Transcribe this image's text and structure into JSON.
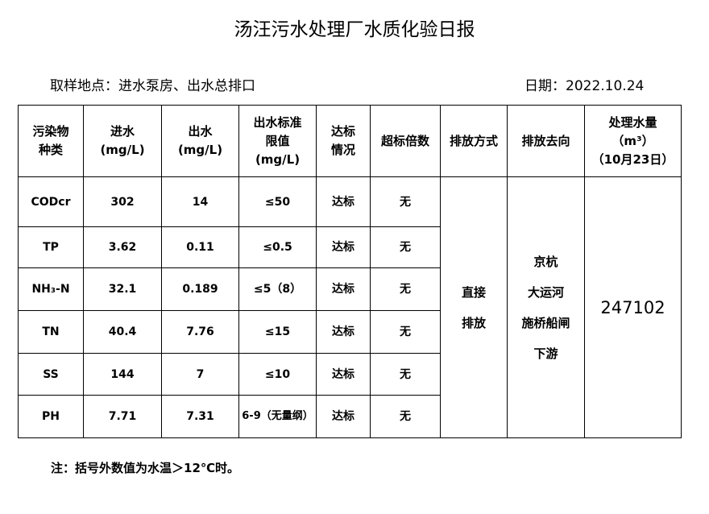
{
  "title": "汤汪污水处理厂水质化验日报",
  "sampling_location": "取样地点：进水泵房、出水总排口",
  "date": "日期：2022.10.24",
  "table": {
    "headers": [
      [
        "污染物",
        "种类"
      ],
      [
        "进水",
        "(mg/L)"
      ],
      [
        "出水",
        "(mg/L)"
      ],
      [
        "出水标准",
        "限值",
        "(mg/L)"
      ],
      [
        "达标",
        "情况"
      ],
      [
        "超标倍数"
      ],
      [
        "排放方式"
      ],
      [
        "排放去向"
      ],
      [
        "处理水量",
        "（m³）",
        "（10月23日）"
      ]
    ],
    "rows": [
      {
        "pollutant": "CODcr",
        "influent": "302",
        "effluent": "14",
        "limit": "≤50",
        "status": "达标",
        "exceed": "无"
      },
      {
        "pollutant": "TP",
        "influent": "3.62",
        "effluent": "0.11",
        "limit": "≤0.5",
        "status": "达标",
        "exceed": "无"
      },
      {
        "pollutant": "NH₃-N",
        "influent": "32.1",
        "effluent": "0.189",
        "limit": "≤5（8）",
        "status": "达标",
        "exceed": "无"
      },
      {
        "pollutant": "TN",
        "influent": "40.4",
        "effluent": "7.76",
        "limit": "≤15",
        "status": "达标",
        "exceed": "无"
      },
      {
        "pollutant": "SS",
        "influent": "144",
        "effluent": "7",
        "limit": "≤10",
        "status": "达标",
        "exceed": "无"
      },
      {
        "pollutant": "PH",
        "influent": "7.71",
        "effluent": "7.31",
        "limit": "6-9（无量纲）",
        "status": "达标",
        "exceed": "无"
      }
    ],
    "discharge_method": [
      "直接",
      "排放"
    ],
    "discharge_destination": [
      "京杭",
      "大运河",
      "施桥船闸",
      "下游"
    ],
    "treated_volume": "247102"
  },
  "note": "注：括号外数值为水温＞12℃时。"
}
